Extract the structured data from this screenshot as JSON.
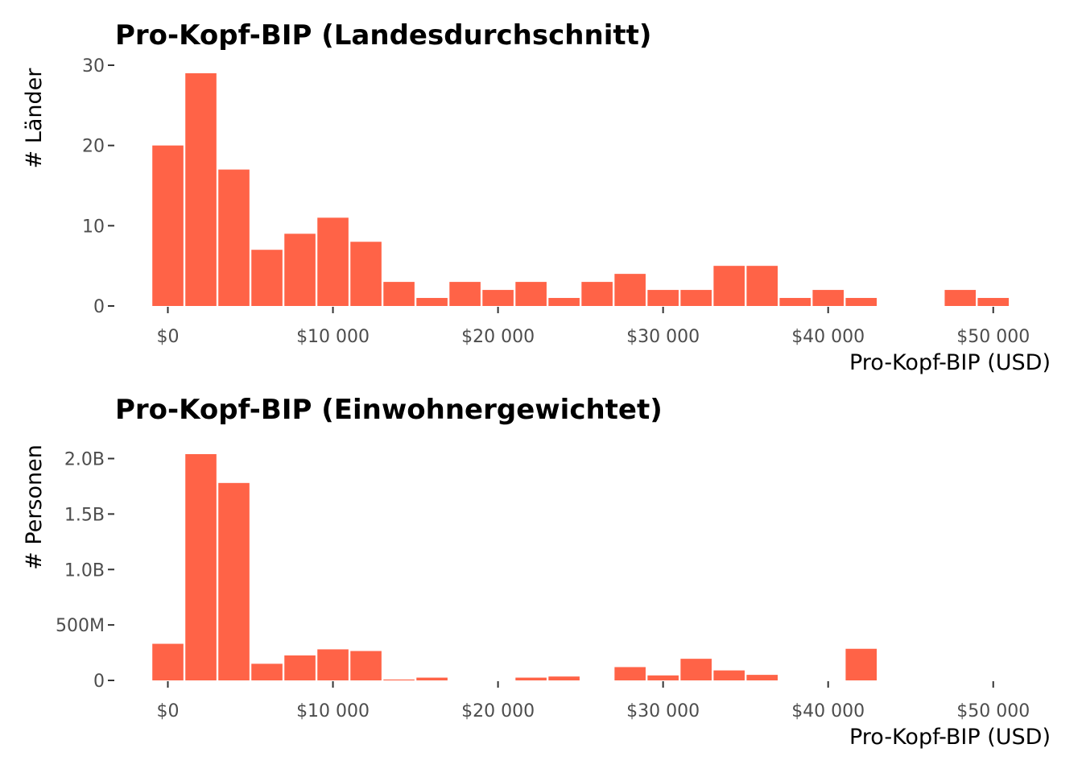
{
  "chart_data": [
    {
      "type": "bar",
      "title": "Pro-Kopf-BIP (Landesdurchschnitt)",
      "xlabel": "Pro-Kopf-BIP (USD)",
      "ylabel": "# Länder",
      "bin_width": 2000,
      "x": [
        0,
        2000,
        4000,
        6000,
        8000,
        10000,
        12000,
        14000,
        16000,
        18000,
        20000,
        22000,
        24000,
        26000,
        28000,
        30000,
        32000,
        34000,
        36000,
        38000,
        40000,
        42000,
        44000,
        46000,
        48000,
        50000
      ],
      "values": [
        20,
        29,
        17,
        7,
        9,
        11,
        8,
        3,
        1,
        3,
        2,
        3,
        1,
        3,
        4,
        2,
        2,
        5,
        5,
        1,
        2,
        1,
        0,
        0,
        2,
        1
      ],
      "xlim": [
        -3000,
        52500
      ],
      "ylim": [
        0,
        30
      ],
      "x_ticks": [
        0,
        10000,
        20000,
        30000,
        40000,
        50000
      ],
      "x_tick_labels": [
        "$0",
        "$10 000",
        "$20 000",
        "$30 000",
        "$40 000",
        "$50 000"
      ],
      "y_ticks": [
        0,
        10,
        20,
        30
      ],
      "y_tick_labels": [
        "0",
        "10",
        "20",
        "30"
      ],
      "color": "#ff6347",
      "grid": false
    },
    {
      "type": "bar",
      "title": "Pro-Kopf-BIP (Einwohnergewichtet)",
      "xlabel": "Pro-Kopf-BIP (USD)",
      "ylabel": "# Personen",
      "bin_width": 2000,
      "x": [
        0,
        2000,
        4000,
        6000,
        8000,
        10000,
        12000,
        14000,
        16000,
        18000,
        20000,
        22000,
        24000,
        26000,
        28000,
        30000,
        32000,
        34000,
        36000,
        38000,
        40000,
        42000,
        44000,
        46000,
        48000,
        50000
      ],
      "values": [
        330000000,
        2040000000,
        1780000000,
        150000000,
        225000000,
        280000000,
        265000000,
        8000000,
        25000000,
        0,
        0,
        25000000,
        35000000,
        0,
        120000000,
        45000000,
        195000000,
        90000000,
        50000000,
        0,
        0,
        285000000,
        0,
        0,
        0,
        0
      ],
      "xlim": [
        -3000,
        52500
      ],
      "ylim": [
        0,
        2040000000
      ],
      "x_ticks": [
        0,
        10000,
        20000,
        30000,
        40000,
        50000
      ],
      "x_tick_labels": [
        "$0",
        "$10 000",
        "$20 000",
        "$30 000",
        "$40 000",
        "$50 000"
      ],
      "y_ticks": [
        0,
        500000000,
        1000000000,
        1500000000,
        2000000000
      ],
      "y_tick_labels": [
        "0",
        "500M",
        "1.0B",
        "1.5B",
        "2.0B"
      ],
      "color": "#ff6347",
      "grid": false
    }
  ]
}
